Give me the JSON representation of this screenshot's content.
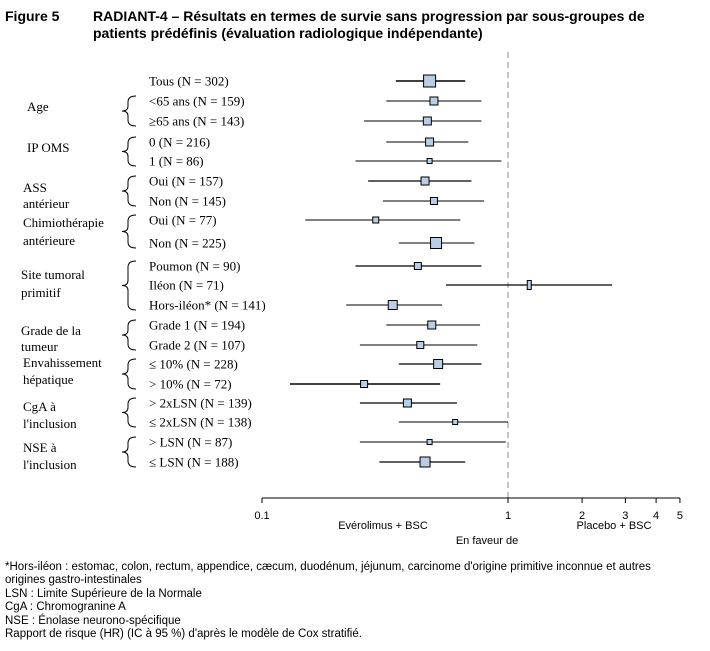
{
  "figure_label": "Figure 5",
  "title_line1": "RADIANT-4 – Résultats en termes de survie sans progression par sous-groupes de",
  "title_line2": "patients prédéfinis (évaluation radiologique indépendante)",
  "footnotes": [
    "*Hors-iléon : estomac, colon, rectum, appendice, cæcum, duodénum, jéjunum, carcinome d'origine primitive inconnue et autres",
    "origines gastro-intestinales",
    "LSN : Limite Supérieure de la Normale",
    "CgA : Chromogranine A",
    "NSE : Énolase neurono-spécifique",
    "Rapport de risque (HR) (IC à 95 %) d'après le modèle de Cox stratifié."
  ],
  "chart_data": {
    "type": "forest",
    "x_scale": "log",
    "xlim": [
      0.1,
      5
    ],
    "x_ticks": [
      {
        "value": 0.1,
        "label": "0.1"
      },
      {
        "value": 1,
        "label": "1"
      },
      {
        "value": 2,
        "label": "2"
      },
      {
        "value": 3,
        "label": "3"
      },
      {
        "value": 4,
        "label": "4"
      },
      {
        "value": 5,
        "label": "5"
      }
    ],
    "reference_line": 1,
    "xlabel_left": "Evérolimus + BSC",
    "xlabel_right": "Placebo + BSC",
    "xlabel_center": "En faveur de",
    "groups": [
      {
        "label": [
          "Age"
        ]
      },
      {
        "label": [
          "IP OMS"
        ]
      },
      {
        "label": [
          "ASS",
          "antérieur"
        ]
      },
      {
        "label": [
          "Chimiothérapie",
          "antérieure"
        ]
      },
      {
        "label": [
          "Site tumoral",
          "primitif"
        ]
      },
      {
        "label": [
          "Grade de la",
          "tumeur"
        ]
      },
      {
        "label": [
          "Envahissement",
          "hépatique"
        ]
      },
      {
        "label": [
          "CgA à",
          "l'inclusion"
        ]
      },
      {
        "label": [
          "NSE à",
          "l'inclusion"
        ]
      }
    ],
    "rows": [
      {
        "label": "Tous (N = 302)",
        "hr": 0.48,
        "lo": 0.35,
        "hi": 0.67
      },
      {
        "label": "<65 ans (N = 159)",
        "hr": 0.5,
        "lo": 0.32,
        "hi": 0.78
      },
      {
        "label": "≥65 ans (N = 143)",
        "hr": 0.47,
        "lo": 0.26,
        "hi": 0.78
      },
      {
        "label": "0 (N = 216)",
        "hr": 0.48,
        "lo": 0.32,
        "hi": 0.69
      },
      {
        "label": "1 (N = 86)",
        "hr": 0.48,
        "lo": 0.24,
        "hi": 0.94
      },
      {
        "label": "Oui (N = 157)",
        "hr": 0.46,
        "lo": 0.27,
        "hi": 0.71
      },
      {
        "label": "Non (N = 145)",
        "hr": 0.5,
        "lo": 0.31,
        "hi": 0.8
      },
      {
        "label": "Oui (N = 77)",
        "hr": 0.29,
        "lo": 0.15,
        "hi": 0.64
      },
      {
        "label": "Non (N = 225)",
        "hr": 0.51,
        "lo": 0.36,
        "hi": 0.73
      },
      {
        "label": "Poumon (N = 90)",
        "hr": 0.43,
        "lo": 0.24,
        "hi": 0.78
      },
      {
        "label": "Iléon (N = 71)",
        "hr": 1.22,
        "lo": 0.56,
        "hi": 2.65
      },
      {
        "label": "Hors-iléon* (N = 141)",
        "hr": 0.34,
        "lo": 0.22,
        "hi": 0.54
      },
      {
        "label": "Grade 1 (N = 194)",
        "hr": 0.49,
        "lo": 0.32,
        "hi": 0.77
      },
      {
        "label": "Grade 2 (N = 107)",
        "hr": 0.44,
        "lo": 0.25,
        "hi": 0.75
      },
      {
        "label": "≤ 10% (N = 228)",
        "hr": 0.52,
        "lo": 0.36,
        "hi": 0.78
      },
      {
        "label": "> 10% (N = 72)",
        "hr": 0.26,
        "lo": 0.13,
        "hi": 0.53
      },
      {
        "label": "> 2xLSN (N = 139)",
        "hr": 0.39,
        "lo": 0.25,
        "hi": 0.62
      },
      {
        "label": "≤ 2xLSN (N = 138)",
        "hr": 0.61,
        "lo": 0.36,
        "hi": 1.0
      },
      {
        "label": "> LSN (N = 87)",
        "hr": 0.48,
        "lo": 0.25,
        "hi": 0.98
      },
      {
        "label": "≤ LSN (N = 188)",
        "hr": 0.46,
        "lo": 0.3,
        "hi": 0.67
      }
    ]
  }
}
